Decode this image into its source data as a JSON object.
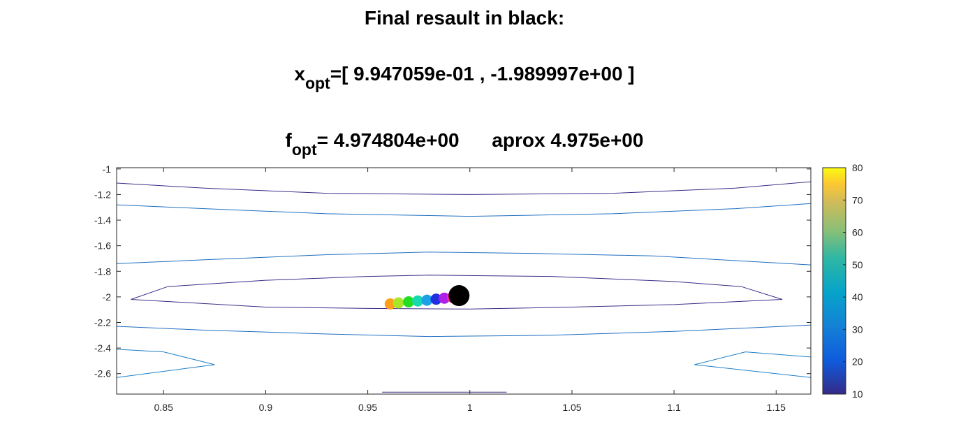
{
  "title": {
    "line1": "Final resault in black:",
    "line2_main": "x",
    "line2_sub": "opt",
    "line2_rest": "=[ 9.947059e-01 , -1.989997e+00 ]",
    "line3_main": "f",
    "line3_sub": "opt",
    "line3_rest": "= 4.974804e+00      aprox 4.975e+00"
  },
  "chart_data": {
    "type": "contour",
    "xlim": [
      0.827,
      1.167
    ],
    "ylim": [
      -2.76,
      -0.99
    ],
    "xticks": [
      0.85,
      0.9,
      0.95,
      1,
      1.05,
      1.1,
      1.15
    ],
    "xtick_labels": [
      "0.85",
      "0.9",
      "0.95",
      "1",
      "1.05",
      "1.1",
      "1.15"
    ],
    "yticks": [
      -1,
      -1.2,
      -1.4,
      -1.6,
      -1.8,
      -2,
      -2.2,
      -2.4,
      -2.6
    ],
    "ytick_labels": [
      "-1",
      "-1.2",
      "-1.4",
      "-1.6",
      "-1.8",
      "-2",
      "-2.2",
      "-2.4",
      "-2.6"
    ],
    "colorbar": {
      "range": [
        10,
        80
      ],
      "ticks": [
        10,
        20,
        30,
        40,
        50,
        60,
        70,
        80
      ],
      "tick_labels": [
        "10",
        "20",
        "30",
        "40",
        "50",
        "60",
        "70",
        "80"
      ]
    },
    "contours": [
      {
        "level": 12,
        "color": "#3b2c88",
        "points": [
          [
            0.827,
            -1.11
          ],
          [
            0.87,
            -1.15
          ],
          [
            0.93,
            -1.19
          ],
          [
            1.0,
            -1.2
          ],
          [
            1.07,
            -1.19
          ],
          [
            1.13,
            -1.15
          ],
          [
            1.167,
            -1.1
          ]
        ]
      },
      {
        "level": 28,
        "color": "#1f6fc0",
        "points": [
          [
            0.827,
            -1.28
          ],
          [
            0.87,
            -1.31
          ],
          [
            0.93,
            -1.35
          ],
          [
            1.0,
            -1.37
          ],
          [
            1.07,
            -1.35
          ],
          [
            1.13,
            -1.31
          ],
          [
            1.167,
            -1.27
          ]
        ]
      },
      {
        "level": 28,
        "color": "#1f6fc0",
        "points": [
          [
            0.827,
            -1.74
          ],
          [
            0.87,
            -1.71
          ],
          [
            0.93,
            -1.67
          ],
          [
            0.98,
            -1.65
          ],
          [
            1.03,
            -1.66
          ],
          [
            1.09,
            -1.68
          ],
          [
            1.167,
            -1.75
          ]
        ]
      },
      {
        "level": 12,
        "color": "#3b2c88",
        "points": [
          [
            0.834,
            -2.02
          ],
          [
            0.852,
            -1.92
          ],
          [
            0.9,
            -1.87
          ],
          [
            0.95,
            -1.84
          ],
          [
            0.98,
            -1.83
          ],
          [
            1.04,
            -1.84
          ],
          [
            1.1,
            -1.88
          ],
          [
            1.133,
            -1.92
          ],
          [
            1.153,
            -2.02
          ],
          [
            1.1,
            -2.06
          ],
          [
            1.05,
            -2.08
          ],
          [
            1.0,
            -2.095
          ],
          [
            0.95,
            -2.09
          ],
          [
            0.9,
            -2.08
          ],
          [
            0.834,
            -2.02
          ]
        ]
      },
      {
        "level": 28,
        "color": "#1f6fc0",
        "points": [
          [
            0.827,
            -2.23
          ],
          [
            0.87,
            -2.26
          ],
          [
            0.93,
            -2.29
          ],
          [
            0.98,
            -2.31
          ],
          [
            1.04,
            -2.3
          ],
          [
            1.1,
            -2.27
          ],
          [
            1.167,
            -2.22
          ]
        ]
      },
      {
        "level": 30,
        "color": "#1e7fc7",
        "points": [
          [
            0.827,
            -2.41
          ],
          [
            0.85,
            -2.43
          ],
          [
            0.875,
            -2.53
          ],
          [
            0.827,
            -2.63
          ]
        ]
      },
      {
        "level": 30,
        "color": "#1e7fc7",
        "points": [
          [
            1.167,
            -2.47
          ],
          [
            1.135,
            -2.43
          ],
          [
            1.11,
            -2.53
          ],
          [
            1.167,
            -2.63
          ]
        ]
      },
      {
        "level": 12,
        "color": "#3b2c88",
        "points": [
          [
            0.957,
            -2.745
          ],
          [
            1.018,
            -2.745
          ]
        ]
      }
    ],
    "iterates": [
      {
        "x": 0.961,
        "y": -2.055,
        "color": "#ff9f1a"
      },
      {
        "x": 0.965,
        "y": -2.047,
        "color": "#a8e62a"
      },
      {
        "x": 0.97,
        "y": -2.039,
        "color": "#22dd22"
      },
      {
        "x": 0.9745,
        "y": -2.032,
        "color": "#16d9b0"
      },
      {
        "x": 0.979,
        "y": -2.026,
        "color": "#1ea0e8"
      },
      {
        "x": 0.9835,
        "y": -2.018,
        "color": "#2030e0"
      },
      {
        "x": 0.9875,
        "y": -2.01,
        "color": "#b020e8"
      },
      {
        "x": 0.9915,
        "y": -2.003,
        "color": "#ff2a9a"
      }
    ],
    "final_point": {
      "x": 0.9947059,
      "y": -1.989997,
      "color": "#000000"
    }
  }
}
